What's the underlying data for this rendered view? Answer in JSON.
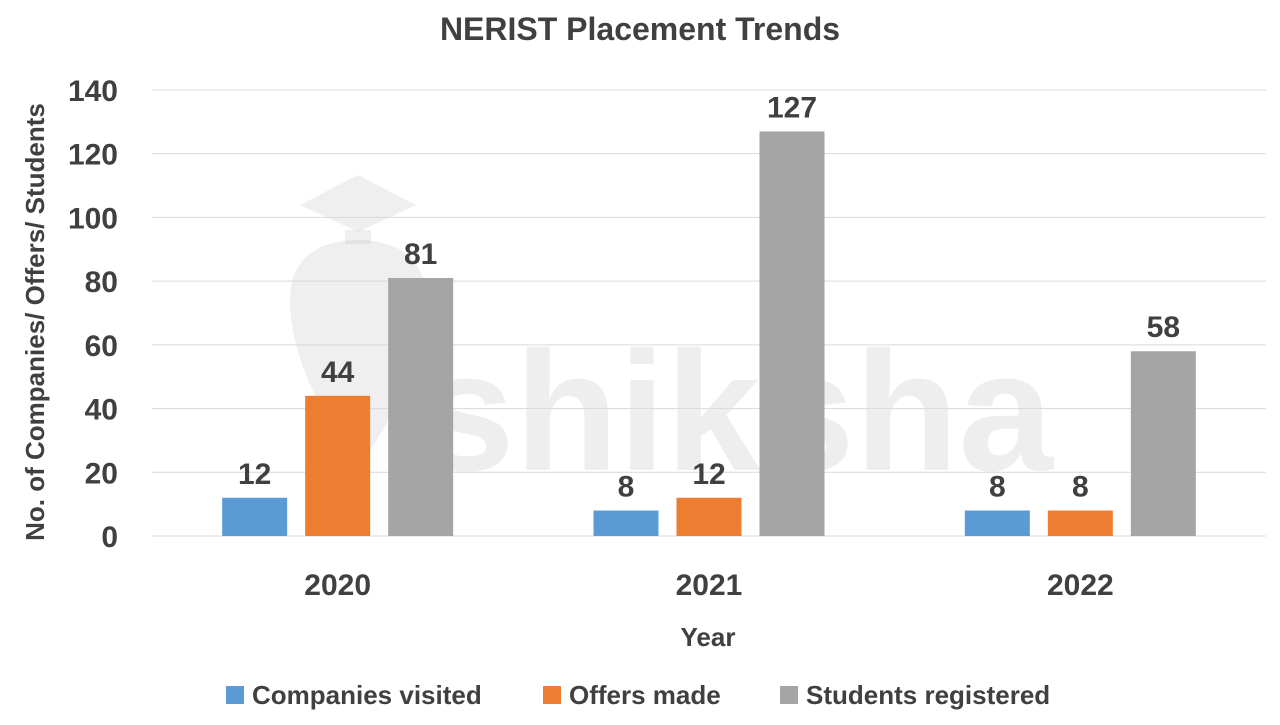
{
  "chart_data": {
    "type": "bar",
    "title": "NERIST Placement Trends",
    "xlabel": "Year",
    "ylabel": "No. of Companies/ Offers/ Students",
    "categories": [
      "2020",
      "2021",
      "2022"
    ],
    "series": [
      {
        "name": "Companies visited",
        "values": [
          12,
          8,
          8
        ],
        "color": "#5b9bd5"
      },
      {
        "name": "Offers made",
        "values": [
          44,
          12,
          8
        ],
        "color": "#ed7d31"
      },
      {
        "name": "Students registered",
        "values": [
          81,
          127,
          58
        ],
        "color": "#a5a5a5"
      }
    ],
    "ylim": [
      0,
      140
    ],
    "yticks": [
      0,
      20,
      40,
      60,
      80,
      100,
      120,
      140
    ],
    "grid": true,
    "legend_position": "bottom",
    "data_labels": true
  },
  "watermark": {
    "text": "shiksha"
  }
}
